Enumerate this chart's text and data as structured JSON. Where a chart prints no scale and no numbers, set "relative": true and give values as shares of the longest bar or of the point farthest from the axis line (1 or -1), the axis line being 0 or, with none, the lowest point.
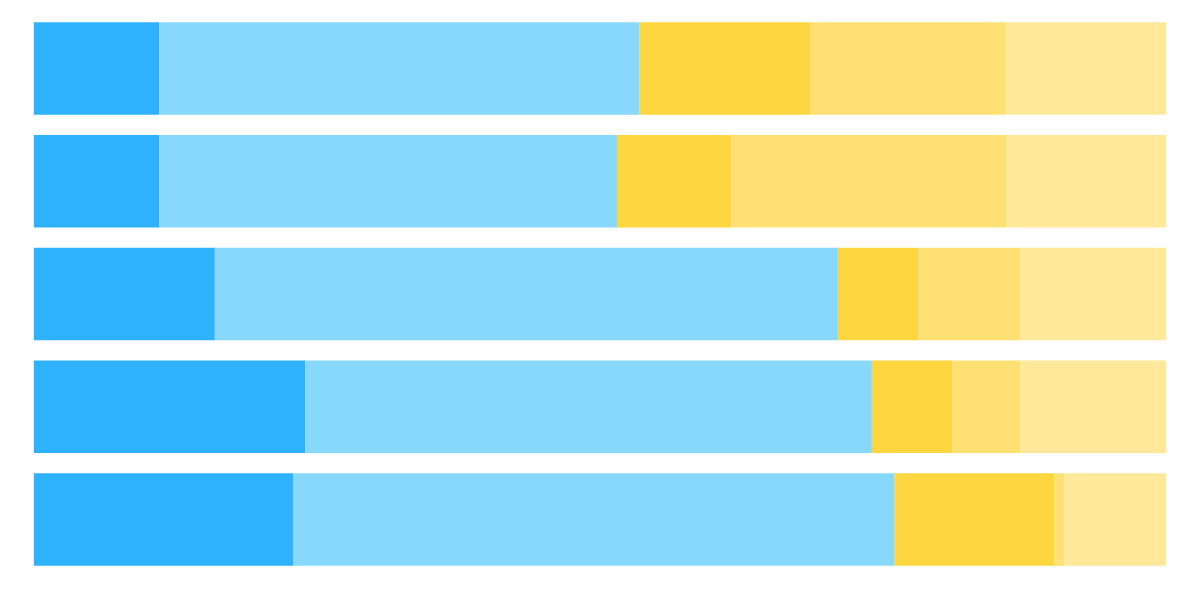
{
  "chart_data": {
    "type": "bar",
    "orientation": "horizontal",
    "stacked": true,
    "relative": true,
    "tick_labels": false,
    "categories": [
      null,
      null,
      null,
      null,
      null
    ],
    "series": [
      {
        "color": "#2eb2fd",
        "values": [
          0.111,
          0.111,
          0.16,
          0.24,
          0.229
        ]
      },
      {
        "color": "#88d8fc",
        "values": [
          0.424,
          0.404,
          0.55,
          0.5,
          0.531
        ]
      },
      {
        "color": "#fed63f",
        "values": [
          0.151,
          0.101,
          0.071,
          0.071,
          0.141
        ]
      },
      {
        "color": "#ffe072",
        "values": [
          0.172,
          0.243,
          0.09,
          0.06,
          0.009
        ]
      },
      {
        "color": "#ffe89a",
        "values": [
          0.142,
          0.141,
          0.129,
          0.129,
          0.09
        ]
      }
    ]
  }
}
